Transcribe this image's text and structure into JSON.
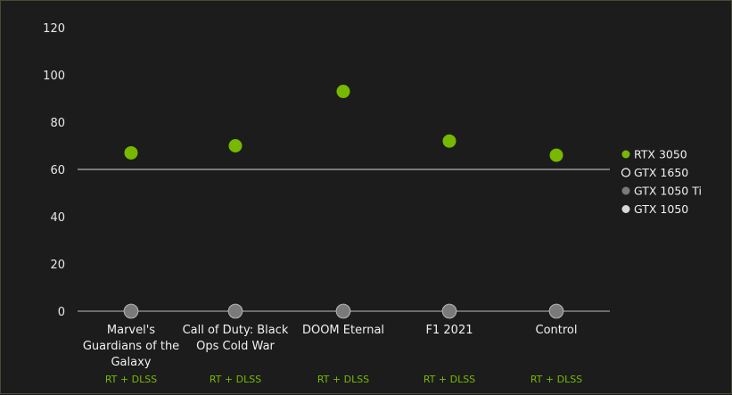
{
  "chart_data": {
    "type": "scatter",
    "categories": [
      "Marvel's Guardians of the Galaxy",
      "Call of Duty: Black Ops Cold War",
      "DOOM Eternal",
      "F1 2021",
      "Control"
    ],
    "category_lines": [
      [
        "Marvel's",
        "Guardians of the",
        "Galaxy"
      ],
      [
        "Call of Duty: Black",
        "Ops Cold War"
      ],
      [
        "DOOM Eternal"
      ],
      [
        "F1 2021"
      ],
      [
        "Control"
      ]
    ],
    "subtitles": [
      "RT + DLSS",
      "RT + DLSS",
      "RT + DLSS",
      "RT + DLSS",
      "RT + DLSS"
    ],
    "series": [
      {
        "name": "RTX 3050",
        "values": [
          67,
          70,
          93,
          72,
          66
        ],
        "color": "#76b900",
        "style": "filled"
      },
      {
        "name": "GTX 1650",
        "values": [
          0,
          0,
          0,
          0,
          0
        ],
        "color": "#ffffff",
        "style": "hollow"
      },
      {
        "name": "GTX 1050 Ti",
        "values": [
          0,
          0,
          0,
          0,
          0
        ],
        "color": "#7a7a7a",
        "style": "filled"
      },
      {
        "name": "GTX 1050",
        "values": [
          0,
          0,
          0,
          0,
          0
        ],
        "color": "#d8d8d8",
        "style": "filled"
      }
    ],
    "yticks": [
      0,
      20,
      40,
      60,
      80,
      100,
      120
    ],
    "ylim": [
      0,
      120
    ],
    "reference_line": 60,
    "grid": false,
    "legend": "right",
    "title": "",
    "xlabel": "",
    "ylabel": ""
  }
}
